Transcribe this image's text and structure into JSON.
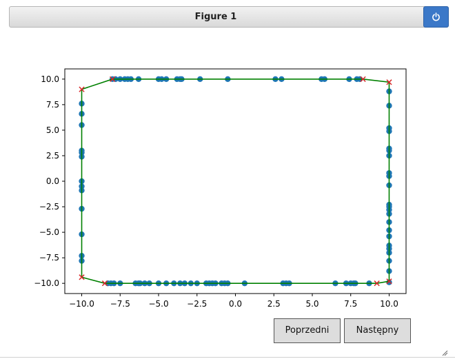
{
  "window": {
    "title": "Figure 1",
    "power_icon": "power-icon",
    "accent_color": "#3b78c8"
  },
  "buttons": {
    "prev_label": "Poprzedni",
    "next_label": "Następny"
  },
  "chart_data": {
    "type": "scatter",
    "title": "",
    "xlabel": "",
    "ylabel": "",
    "xlim": [
      -11.1,
      11.1
    ],
    "ylim": [
      -11.0,
      11.0
    ],
    "x_ticks": [
      -10,
      -7.5,
      -5,
      -2.5,
      0,
      2.5,
      5,
      7.5,
      10
    ],
    "x_tick_labels": [
      "−10.0",
      "−7.5",
      "−5.0",
      "−2.5",
      "0.0",
      "2.5",
      "5.0",
      "7.5",
      "10.0"
    ],
    "y_ticks": [
      10,
      7.5,
      5,
      2.5,
      0,
      -2.5,
      -5,
      -7.5,
      -10
    ],
    "y_tick_labels": [
      "10.0",
      "7.5",
      "5.0",
      "2.5",
      "0.0",
      "−2.5",
      "−5.0",
      "−7.5",
      "−10.0"
    ],
    "grid": false,
    "series": [
      {
        "role": "points",
        "marker": "circle",
        "color": "#1f77b4",
        "x": [
          -8.0,
          -7.8,
          -7.5,
          -7.2,
          -7.0,
          -6.8,
          -6.3,
          -5.0,
          -4.8,
          -4.5,
          -3.8,
          -3.6,
          -3.5,
          -2.3,
          -0.5,
          2.6,
          3.0,
          5.6,
          5.8,
          7.4,
          7.9,
          8.1,
          -8.3,
          -8.1,
          -7.9,
          -7.5,
          -6.5,
          -6.3,
          -6.2,
          -5.9,
          -5.6,
          -5.0,
          -4.5,
          -4.0,
          -3.6,
          -3.3,
          -2.9,
          -2.5,
          -1.9,
          -1.7,
          -1.5,
          -1.3,
          -0.9,
          -0.7,
          -0.5,
          0.6,
          3.1,
          3.3,
          3.5,
          6.5,
          7.2,
          7.5,
          7.7,
          7.8,
          8.7,
          -10.0,
          -10.0,
          -10.0,
          -10.0,
          -10.0,
          -10.0,
          -10.0,
          -10.0,
          -10.0,
          -10.0,
          -10.0,
          -10.0,
          -10.0,
          10.0,
          10.0,
          10.0,
          10.0,
          10.0,
          10.0,
          10.0,
          10.0,
          10.0,
          10.0,
          10.0,
          10.0,
          10.0,
          10.0,
          10.0,
          10.0,
          10.0,
          10.0,
          10.0,
          10.0,
          10.0,
          10.0,
          10.0
        ],
        "y": [
          10,
          10,
          10,
          10,
          10,
          10,
          10,
          10,
          10,
          10,
          10,
          10,
          10,
          10,
          10,
          10,
          10,
          10,
          10,
          10,
          10,
          10,
          -10,
          -10,
          -10,
          -10,
          -10,
          -10,
          -10,
          -10,
          -10,
          -10,
          -10,
          -10,
          -10,
          -10,
          -10,
          -10,
          -10,
          -10,
          -10,
          -10,
          -10,
          -10,
          -10,
          -10,
          -10,
          -10,
          -10,
          -10,
          -10,
          -10,
          -10,
          -10,
          -10,
          7.6,
          6.6,
          5.5,
          3.0,
          2.8,
          2.4,
          0.0,
          -0.5,
          -0.9,
          -2.7,
          -5.2,
          -7.3,
          -7.8,
          8.8,
          7.4,
          5.2,
          4.9,
          3.2,
          3.0,
          2.5,
          0.8,
          0.5,
          -0.4,
          -2.3,
          -2.5,
          -2.8,
          -3.2,
          -4.0,
          -4.8,
          -5.4,
          -6.3,
          -6.6,
          -7.0,
          -7.8,
          -8.8,
          -9.9
        ]
      },
      {
        "role": "hull",
        "marker": "x",
        "color": "#d62728",
        "line_color": "#008000",
        "x": [
          -10.0,
          -8.0,
          8.3,
          10.0,
          10.0,
          9.2,
          -8.5,
          -10.0
        ],
        "y": [
          9.0,
          10.0,
          10.0,
          9.7,
          -9.8,
          -10.0,
          -10.0,
          -9.4
        ]
      }
    ]
  }
}
